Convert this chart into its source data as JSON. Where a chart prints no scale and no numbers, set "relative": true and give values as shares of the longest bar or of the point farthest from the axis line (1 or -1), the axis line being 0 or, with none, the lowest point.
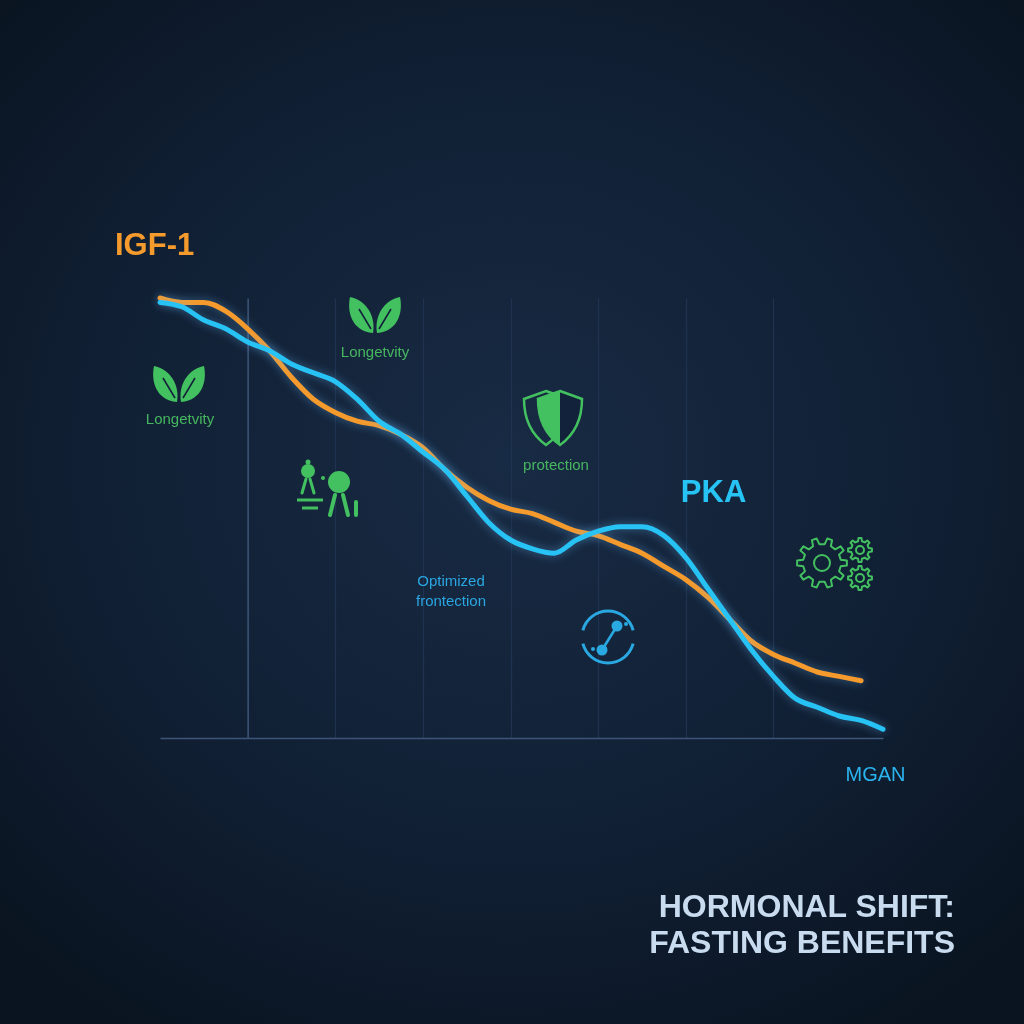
{
  "chart_data": {
    "type": "line",
    "title": "HORMONAL SHIFT:\nFASTING BENEFITS",
    "xlabel": "MGAN",
    "relative": true,
    "grid": "x",
    "categories": [
      null,
      null,
      null,
      null,
      null,
      null,
      null,
      null,
      null,
      null,
      null,
      null,
      null,
      null,
      null,
      null,
      null,
      null,
      null,
      null,
      null,
      null,
      null,
      null,
      null,
      null,
      null,
      null,
      null,
      null,
      null,
      null,
      null,
      null
    ],
    "series": [
      {
        "name": "IGF-1",
        "color": "#f59a2c",
        "values": [
          1,
          0.99,
          0.99,
          0.97,
          0.93,
          0.88,
          0.82,
          0.77,
          0.74,
          0.72,
          0.71,
          0.69,
          0.66,
          0.61,
          0.57,
          0.54,
          0.52,
          0.51,
          0.49,
          0.47,
          0.46,
          0.44,
          0.42,
          0.39,
          0.36,
          0.32,
          0.27,
          0.22,
          0.19,
          0.17,
          0.15,
          0.14,
          0.13,
          null
        ]
      },
      {
        "name": "PKA",
        "color": "#27c3f5",
        "values": [
          0.99,
          0.98,
          0.95,
          0.93,
          0.9,
          0.88,
          0.85,
          0.83,
          0.81,
          0.77,
          0.72,
          0.69,
          0.65,
          0.61,
          0.55,
          0.49,
          0.45,
          0.43,
          0.42,
          0.45,
          0.47,
          0.48,
          0.48,
          0.46,
          0.41,
          0.34,
          0.27,
          0.2,
          0.14,
          0.09,
          0.07,
          0.05,
          0.04,
          0.02
        ]
      }
    ],
    "annotations": [
      "Longetvity",
      "Longetvity",
      "protection",
      "Optimized\nfrontection"
    ]
  }
}
